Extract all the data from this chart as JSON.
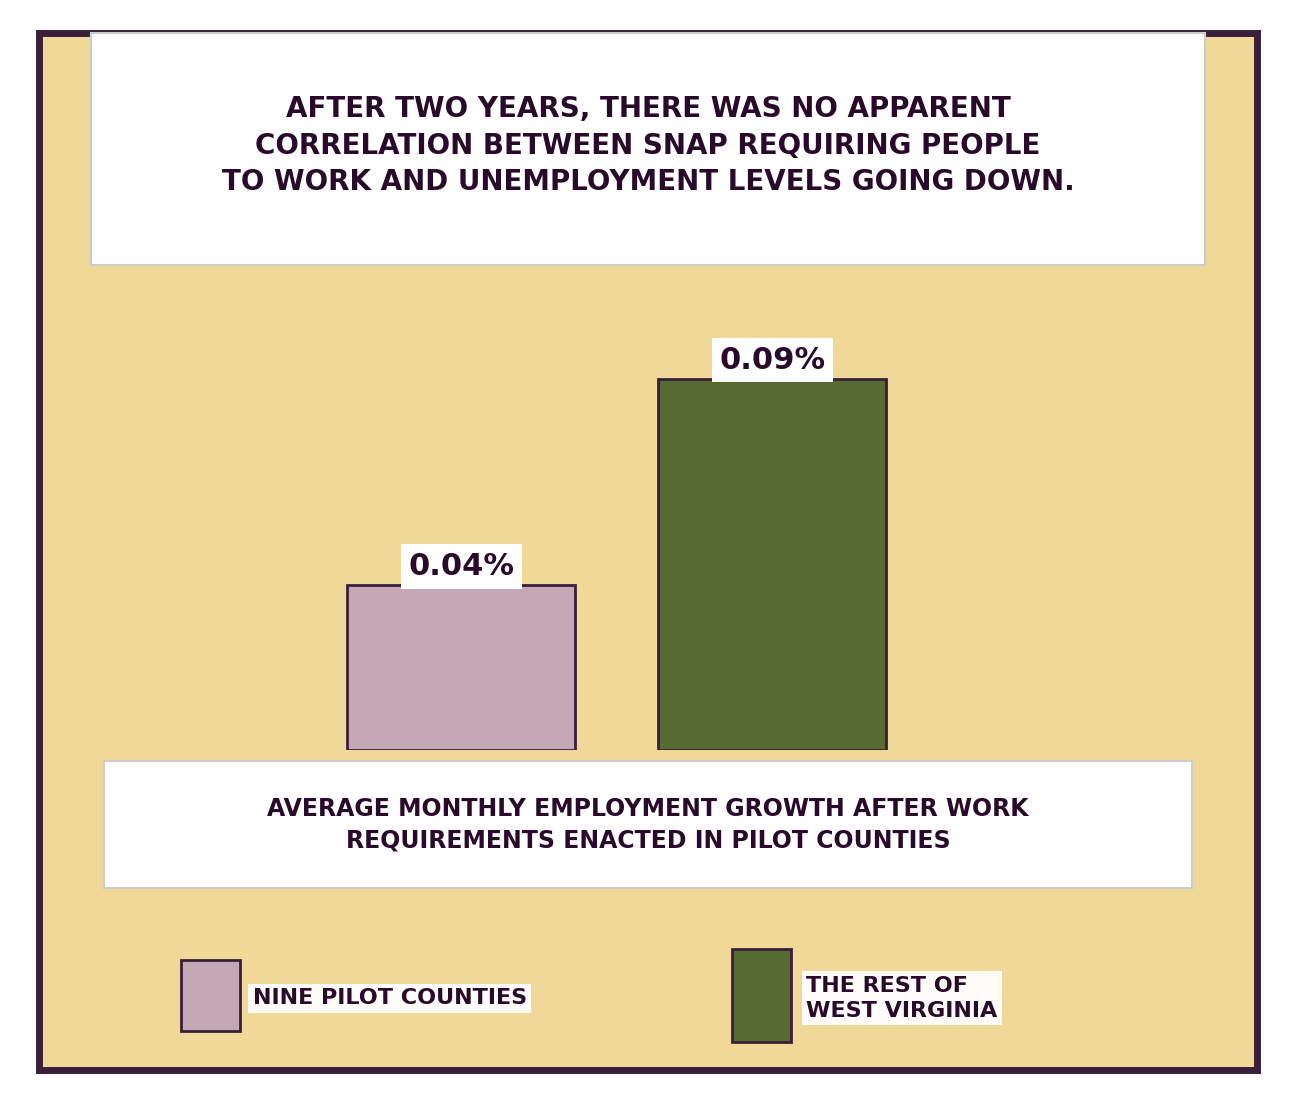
{
  "title_line1": "AFTER TWO YEARS, THERE WAS NO APPARENT",
  "title_line2": "CORRELATION BETWEEN SNAP REQUIRING PEOPLE",
  "title_line3": "TO WORK AND UNEMPLOYMENT LEVELS GOING DOWN.",
  "xlabel_line1": "AVERAGE MONTHLY EMPLOYMENT GROWTH AFTER WORK",
  "xlabel_line2": "REQUIREMENTS ENACTED IN PILOT COUNTIES",
  "values": [
    0.04,
    0.09
  ],
  "bar_colors": [
    "#c4a8b5",
    "#556b2f"
  ],
  "bar_edgecolor": "#3a1f3a",
  "value_labels": [
    "0.04%",
    "0.09%"
  ],
  "legend_label1": "NINE PILOT COUNTIES",
  "legend_label2": "THE REST OF\nWEST VIRGINIA",
  "background_color": "#f0d898",
  "panel_border_color": "#3a1f3a",
  "text_color": "#2a0a2a",
  "figsize": [
    12.96,
    11.03
  ],
  "dpi": 100
}
